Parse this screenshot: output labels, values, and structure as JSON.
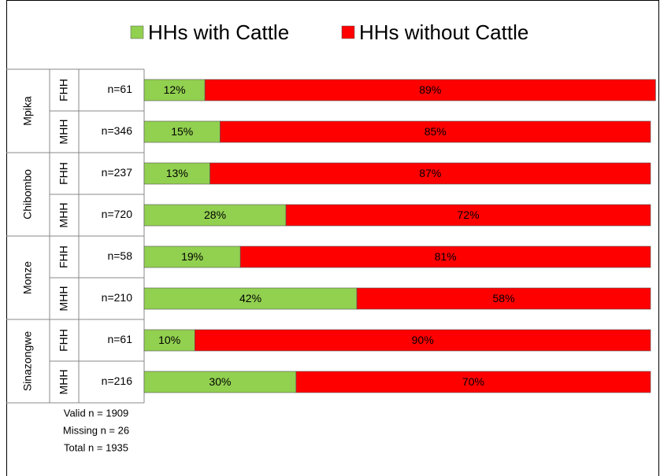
{
  "chart_data": {
    "type": "stacked-bar-horizontal",
    "groups": [
      "Mpika",
      "Chibombo",
      "Monze",
      "Sinazongwe"
    ],
    "subcategories": [
      "FHH",
      "MHH",
      "FHH",
      "MHH",
      "FHH",
      "MHH",
      "FHH",
      "MHH"
    ],
    "categories": [
      "n=61",
      "n=346",
      "n=237",
      "n=720",
      "n=58",
      "n=210",
      "n=61",
      "n=216"
    ],
    "series": [
      {
        "name": "HHs with Cattle",
        "color": "#92d050",
        "values": [
          12,
          15,
          13,
          28,
          19,
          42,
          10,
          30
        ],
        "value_labels": [
          "12%",
          "15%",
          "13%",
          "28%",
          "19%",
          "42%",
          "10%",
          "30%"
        ]
      },
      {
        "name": "HHs without Cattle",
        "color": "#ff0000",
        "values": [
          89,
          85,
          87,
          72,
          81,
          58,
          90,
          70
        ],
        "value_labels": [
          "89%",
          "85%",
          "87%",
          "72%",
          "81%",
          "58%",
          "90%",
          "70%"
        ]
      }
    ],
    "xlim": [
      0,
      100
    ],
    "notes": [
      "Valid n = 1909",
      "Missing n = 26",
      "Total n = 1935"
    ]
  }
}
